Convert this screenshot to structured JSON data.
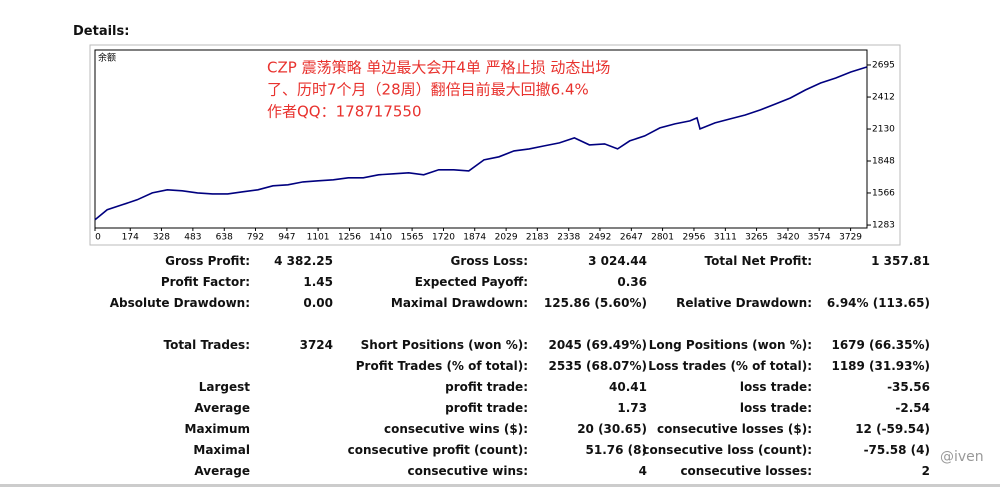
{
  "header": {
    "title": "Details:"
  },
  "chart_data": {
    "type": "line",
    "label": "余额",
    "annotation": [
      "CZP 震荡策略 单边最大会开4单 严格止损  动态出场",
      "了、历时7个月（28周）翻倍目前最大回撤6.4%",
      "作者QQ：178717550"
    ],
    "x": [
      0,
      60,
      134,
      208,
      283,
      357,
      431,
      506,
      580,
      655,
      729,
      804,
      878,
      952,
      1027,
      1101,
      1176,
      1250,
      1324,
      1399,
      1473,
      1548,
      1622,
      1696,
      1771,
      1845,
      1920,
      1994,
      2068,
      2143,
      2217,
      2292,
      2366,
      2440,
      2515,
      2579,
      2639,
      2713,
      2788,
      2862,
      2936,
      2971,
      2986,
      3060,
      3135,
      3209,
      3284,
      3358,
      3432,
      3507,
      3581,
      3656,
      3730,
      3809
    ],
    "y": [
      1330,
      1418,
      1462,
      1506,
      1567,
      1594,
      1585,
      1567,
      1558,
      1558,
      1576,
      1594,
      1629,
      1638,
      1664,
      1673,
      1682,
      1700,
      1700,
      1726,
      1735,
      1744,
      1726,
      1770,
      1770,
      1761,
      1858,
      1885,
      1937,
      1955,
      1981,
      2008,
      2052,
      1990,
      1999,
      1955,
      2025,
      2069,
      2140,
      2175,
      2202,
      2228,
      2131,
      2184,
      2219,
      2254,
      2299,
      2351,
      2404,
      2475,
      2536,
      2580,
      2633,
      2677
    ],
    "color": "#00007f",
    "xlim": [
      0,
      3810
    ],
    "xticks": [
      0,
      174,
      328,
      483,
      638,
      792,
      947,
      1101,
      1256,
      1410,
      1565,
      1720,
      1874,
      2029,
      2183,
      2338,
      2492,
      2647,
      2801,
      2956,
      3111,
      3265,
      3420,
      3574,
      3729
    ],
    "ylim": [
      1257,
      2827
    ],
    "yticks": [
      1283,
      1566,
      1848,
      2130,
      2412,
      2695
    ]
  },
  "table": {
    "rows": [
      {
        "c0": "Gross Profit:",
        "c1": "4 382.25",
        "c2": "Gross Loss:",
        "c3": "3 024.44",
        "c4": "Total Net Profit:",
        "c5": "1 357.81"
      },
      {
        "c0": "Profit Factor:",
        "c1": "1.45",
        "c2": "Expected Payoff:",
        "c3": "0.36"
      },
      {
        "c0": "Absolute Drawdown:",
        "c1": "0.00",
        "c2": "Maximal Drawdown:",
        "c3": "125.86 (5.60%)",
        "c4": "Relative Drawdown:",
        "c5": "6.94% (113.65)"
      },
      {
        "c0": "Total Trades:",
        "c1": "3724",
        "c2": "Short Positions (won %):",
        "c3": "2045 (69.49%)",
        "c4": "Long Positions (won %):",
        "c5": "1679 (66.35%)"
      },
      {
        "c2": "Profit Trades (% of total):",
        "c3": "2535 (68.07%)",
        "c4": "Loss trades (% of total):",
        "c5": "1189 (31.93%)"
      },
      {
        "c0": "Largest",
        "c2": "profit trade:",
        "c3": "40.41",
        "c4": "loss trade:",
        "c5": "-35.56"
      },
      {
        "c0": "Average",
        "c2": "profit trade:",
        "c3": "1.73",
        "c4": "loss trade:",
        "c5": "-2.54"
      },
      {
        "c0": "Maximum",
        "c2": "consecutive wins ($):",
        "c3": "20 (30.65)",
        "c4": "consecutive losses ($):",
        "c5": "12 (-59.54)"
      },
      {
        "c0": "Maximal",
        "c2": "consecutive profit (count):",
        "c3": "51.76 (8)",
        "c4": "consecutive loss (count):",
        "c5": "-75.58 (4)"
      },
      {
        "c0": "Average",
        "c2": "consecutive wins:",
        "c3": "4",
        "c4": "consecutive losses:",
        "c5": "2"
      }
    ]
  },
  "watermark": "@iven"
}
